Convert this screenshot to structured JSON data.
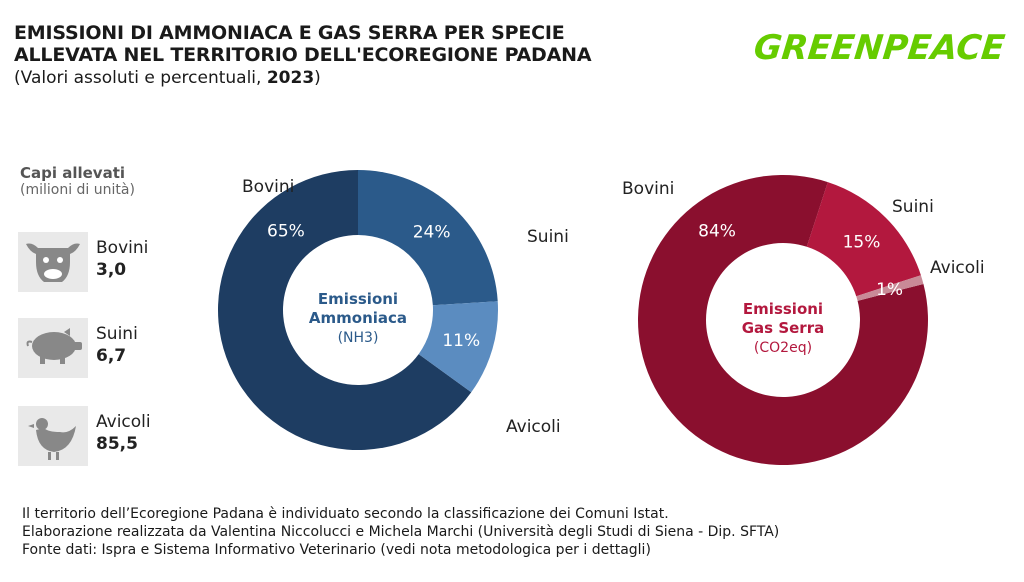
{
  "header": {
    "title_line1": "EMISSIONI DI AMMONIACA E GAS SERRA PER SPECIE",
    "title_line2": "ALLEVATA NEL TERRITORIO DELL'ECOREGIONE PADANA",
    "subtitle_prefix": "(Valori assoluti e percentuali, ",
    "subtitle_year": "2023",
    "subtitle_suffix": ")",
    "logo": "GREENPEACE"
  },
  "colors": {
    "logo": "#66cc00",
    "bovini_nh3": "#1e3d62",
    "suini_nh3": "#2b5a8a",
    "avicoli_nh3": "#5b8cc0",
    "bovini_ghg": "#8a0f2e",
    "suini_ghg": "#b3183e",
    "avicoli_ghg": "#c98a97"
  },
  "capi": {
    "title": "Capi allevati",
    "unit": "(milioni di unità)",
    "items": [
      {
        "name": "Bovini",
        "value": "3,0",
        "icon": "cow-icon"
      },
      {
        "name": "Suini",
        "value": "6,7",
        "icon": "pig-icon"
      },
      {
        "name": "Avicoli",
        "value": "85,5",
        "icon": "chicken-icon"
      }
    ]
  },
  "chart_data": [
    {
      "type": "pie",
      "center_label": [
        "Emissioni",
        "Ammoniaca"
      ],
      "center_sub": "(NH3)",
      "slices": [
        {
          "label": "Bovini",
          "value": 65,
          "pct_label": "65%"
        },
        {
          "label": "Suini",
          "value": 24,
          "pct_label": "24%"
        },
        {
          "label": "Avicoli",
          "value": 11,
          "pct_label": "11%"
        }
      ]
    },
    {
      "type": "pie",
      "center_label": [
        "Emissioni",
        "Gas Serra"
      ],
      "center_sub": "(CO2eq)",
      "slices": [
        {
          "label": "Bovini",
          "value": 84,
          "pct_label": "84%"
        },
        {
          "label": "Suini",
          "value": 15,
          "pct_label": "15%"
        },
        {
          "label": "Avicoli",
          "value": 1,
          "pct_label": "1%"
        }
      ]
    }
  ],
  "footer": {
    "line1": "Il territorio dell’Ecoregione Padana è individuato secondo la classificazione dei Comuni Istat.",
    "line2": "Elaborazione realizzata da Valentina Niccolucci e Michela Marchi (Università degli Studi di Siena - Dip. SFTA)",
    "line3": "Fonte dati: Ispra e Sistema Informativo Veterinario (vedi nota metodologica per i dettagli)"
  }
}
